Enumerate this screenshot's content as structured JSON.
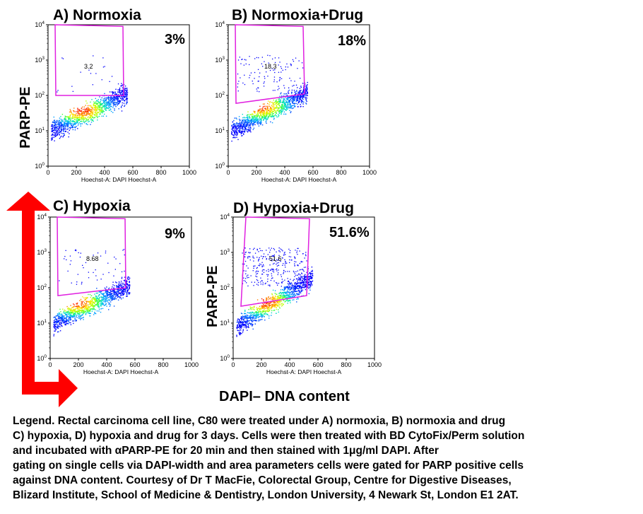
{
  "panels": [
    {
      "title": "A) Normoxia",
      "percent": "3%",
      "gate_value": "3.2",
      "xlabel": "Hoechst-A: DAPI Hoechst-A",
      "accent": "#e020e0"
    },
    {
      "title": "B) Normoxia+Drug",
      "percent": "18%",
      "gate_value": "18.3",
      "xlabel": "Hoechst-A: DAPI Hoechst-A",
      "accent": "#e020e0"
    },
    {
      "title": "C) Hypoxia",
      "percent": "9%",
      "gate_value": "8.68",
      "xlabel": "Hoechst-A: DAPI Hoechst-A",
      "accent": "#e020e0"
    },
    {
      "title": "D) Hypoxia+Drug",
      "percent": "51.6%",
      "gate_value": "51.6",
      "xlabel": "Hoechst-A: DAPI Hoechst-A",
      "accent": "#e020e0"
    }
  ],
  "ylabel": "PARP-PE",
  "xlabel_big": "DAPI– DNA content",
  "arrow_color": "#ff0000",
  "legend_lines": [
    "Legend. Rectal carcinoma cell line, C80 were treated under A) normoxia, B) normoxia and drug",
    "C) hypoxia, D) hypoxia and drug for 3 days. Cells were then treated with BD CytoFix/Perm solution",
    "and incubated with αPARP-PE for 20 min and then stained with 1μg/ml DAPI. After",
    "gating on single cells via DAPI-width and area parameters cells were gated for PARP positive cells",
    "against DNA content. Courtesy of Dr T MacFie, Colorectal Group, Centre for Digestive Diseases,",
    "Blizard Institute, School of Medicine & Dentistry, London University, 4 Newark St, London E1 2AT."
  ],
  "chart_data": [
    {
      "type": "scatter",
      "title": "A) Normoxia",
      "xlabel": "Hoechst-A: DAPI Hoechst-A",
      "ylabel": "PARP-PE",
      "xlim": [
        0,
        1000
      ],
      "ylim": [
        1,
        10000
      ],
      "y_scale": "log",
      "x_ticks": [
        "0",
        "200",
        "400",
        "600",
        "800",
        "1000"
      ],
      "y_ticks": [
        "10^0",
        "10^1",
        "10^2",
        "10^3",
        "10^4"
      ],
      "gate": [
        [
          55,
          100
        ],
        [
          50,
          10000
        ],
        [
          530,
          9000
        ],
        [
          535,
          100
        ]
      ],
      "gate_percent": 3.2,
      "population": {
        "x_center": 230,
        "y_center": 40,
        "x_spread": [
          20,
          560
        ],
        "y_spread": [
          10,
          120
        ]
      }
    },
    {
      "type": "scatter",
      "title": "B) Normoxia+Drug",
      "xlabel": "Hoechst-A: DAPI Hoechst-A",
      "ylabel": "",
      "xlim": [
        0,
        1000
      ],
      "ylim": [
        1,
        10000
      ],
      "y_scale": "log",
      "x_ticks": [
        "0",
        "200",
        "400",
        "600",
        "800",
        "1000"
      ],
      "y_ticks": [
        "10^0",
        "10^1",
        "10^2",
        "10^3",
        "10^4"
      ],
      "gate": [
        [
          55,
          60
        ],
        [
          50,
          10000
        ],
        [
          530,
          9000
        ],
        [
          540,
          110
        ]
      ],
      "gate_percent": 18.3,
      "population": {
        "x_center": 220,
        "y_center": 50,
        "x_spread": [
          20,
          560
        ],
        "y_spread": [
          10,
          130
        ]
      }
    },
    {
      "type": "scatter",
      "title": "C) Hypoxia",
      "xlabel": "Hoechst-A: DAPI Hoechst-A",
      "ylabel": "",
      "xlim": [
        0,
        1000
      ],
      "ylim": [
        1,
        10000
      ],
      "y_scale": "log",
      "x_ticks": [
        "0",
        "200",
        "400",
        "600",
        "800",
        "1000"
      ],
      "y_ticks": [
        "10^0",
        "10^1",
        "10^2",
        "10^3",
        "10^4"
      ],
      "gate": [
        [
          55,
          60
        ],
        [
          50,
          10000
        ],
        [
          530,
          9000
        ],
        [
          535,
          100
        ]
      ],
      "gate_percent": 8.68,
      "population": {
        "x_center": 180,
        "y_center": 40,
        "x_spread": [
          20,
          560
        ],
        "y_spread": [
          10,
          120
        ]
      }
    },
    {
      "type": "scatter",
      "title": "D) Hypoxia+Drug",
      "xlabel": "Hoechst-A: DAPI Hoechst-A",
      "ylabel": "PARP-PE",
      "xlim": [
        0,
        1000
      ],
      "ylim": [
        1,
        10000
      ],
      "y_scale": "log",
      "x_ticks": [
        "0",
        "200",
        "400",
        "600",
        "800",
        "1000"
      ],
      "y_ticks": [
        "10^0",
        "10^1",
        "10^2",
        "10^3",
        "10^4"
      ],
      "gate": [
        [
          55,
          30
        ],
        [
          90,
          10000
        ],
        [
          540,
          9000
        ],
        [
          520,
          60
        ]
      ],
      "gate_percent": 51.6,
      "population": {
        "x_center": 220,
        "y_center": 40,
        "x_spread": [
          20,
          560
        ],
        "y_spread": [
          8,
          200
        ]
      }
    }
  ]
}
